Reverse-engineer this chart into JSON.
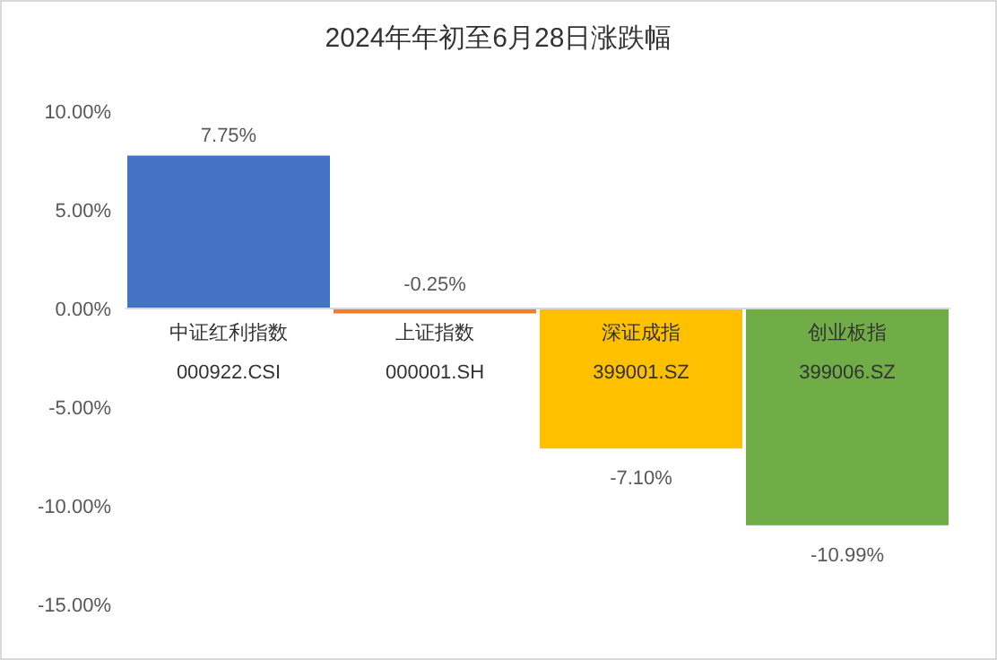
{
  "chart_data": {
    "type": "bar",
    "title": "2024年年初至6月28日涨跌幅",
    "categories": [
      "中证红利指数\n000922.CSI",
      "上证指数\n000001.SH",
      "深证成指\n399001.SZ",
      "创业板指\n399006.SZ"
    ],
    "values": [
      7.75,
      -0.25,
      -7.1,
      -10.99
    ],
    "colors": [
      "#4472c4",
      "#ed7d31",
      "#ffc000",
      "#70ad47"
    ],
    "value_labels": [
      "7.75%",
      "-0.25%",
      "-7.10%",
      "-10.99%"
    ],
    "ylim": [
      -15,
      10
    ],
    "yticks": [
      {
        "value": 10,
        "label": "10.00%"
      },
      {
        "value": 5,
        "label": "5.00%"
      },
      {
        "value": 0,
        "label": "0.00%"
      },
      {
        "value": -5,
        "label": "-5.00%"
      },
      {
        "value": -10,
        "label": "-10.00%"
      },
      {
        "value": -15,
        "label": "-15.00%"
      }
    ]
  }
}
